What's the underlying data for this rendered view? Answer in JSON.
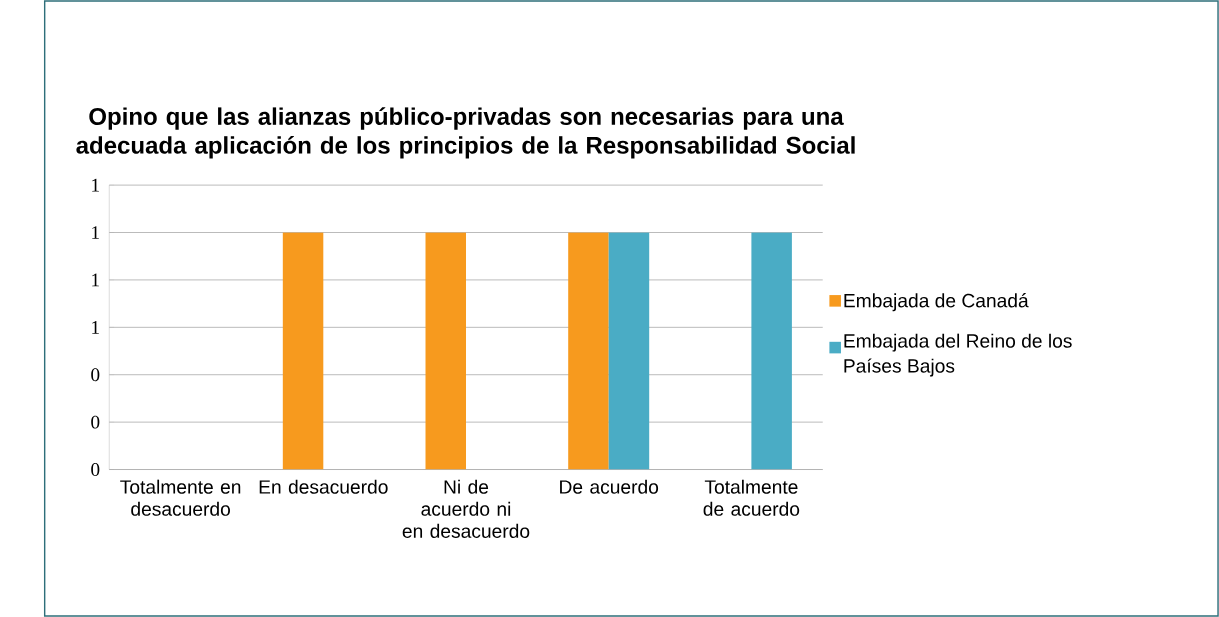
{
  "chart_data": {
    "type": "bar",
    "title": "Opino que las alianzas público-privadas son necesarias para una adecuada aplicación de los principios de la Responsabilidad Social",
    "categories": [
      "Totalmente en desacuerdo",
      "En desacuerdo",
      "Ni de acuerdo ni en desacuerdo",
      "De acuerdo",
      "Totalmente de acuerdo"
    ],
    "series": [
      {
        "name": "Embajada de Canadá",
        "color": "#f79a1e",
        "values": [
          0,
          1,
          1,
          1,
          0
        ]
      },
      {
        "name": "Embajada del Reino de los Países Bajos",
        "color": "#4aacc5",
        "values": [
          0,
          0,
          0,
          1,
          1
        ]
      }
    ],
    "ylim": [
      0,
      1.2
    ],
    "yticks": [
      {
        "value": 0,
        "label": "0"
      },
      {
        "value": 0.2,
        "label": "0"
      },
      {
        "value": 0.4,
        "label": "0"
      },
      {
        "value": 0.6,
        "label": "1"
      },
      {
        "value": 0.8,
        "label": "1"
      },
      {
        "value": 1.0,
        "label": "1"
      },
      {
        "value": 1.2,
        "label": "1"
      }
    ],
    "grid": "y",
    "legend": "right"
  }
}
